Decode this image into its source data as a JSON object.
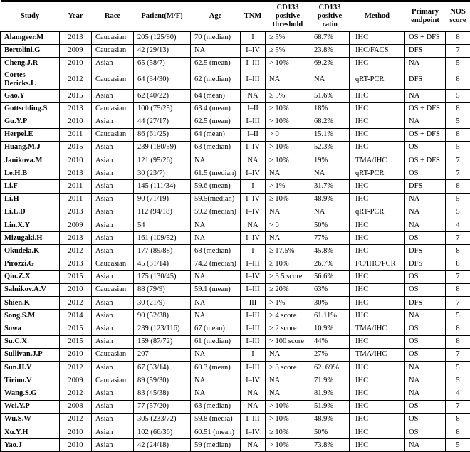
{
  "table": {
    "columns": [
      "Study",
      "Year",
      "Race",
      "Patient(M/F)",
      "Age",
      "TNM",
      "CD133 positive threshold",
      "CD133 positive ratio",
      "Method",
      "Primary endpoint",
      "NOS score"
    ],
    "rows": [
      [
        "Alamgeer.M",
        "2013",
        "Caucasian",
        "205 (125/80)",
        "70 (median)",
        "I",
        "≥ 5%",
        "68.7%",
        "IHC",
        "OS + DFS",
        "8"
      ],
      [
        "Bertolini.G",
        "2009",
        "Caucasian",
        "42 (29/13)",
        "NA",
        "I–IV",
        "≥ 5%",
        "23.8%",
        "IHC/FACS",
        "DFS",
        "7"
      ],
      [
        "Cheng.J.R",
        "2010",
        "Asian",
        "65 (58/7)",
        "62.5 (mean)",
        "I–III",
        "> 10%",
        "69.2%",
        "IHC",
        "NA",
        "5"
      ],
      [
        "Cortes-Dericks.L",
        "2012",
        "Caucasian",
        "64 (34/30)",
        "62 (median)",
        "I–III",
        "NA",
        "NA",
        "qRT-PCR",
        "DFS",
        "8"
      ],
      [
        "Gao.Y",
        "2015",
        "Asian",
        "62 (40/22)",
        "64 (mean)",
        "NA",
        "≥ 5%",
        "51.6%",
        "IHC",
        "NA",
        "5"
      ],
      [
        "Gottschling.S",
        "2013",
        "Caucasian",
        "100 (75/25)",
        "63.4 (mean)",
        "I–II",
        "≥ 10%",
        "18%",
        "IHC",
        "OS + DFS",
        "8"
      ],
      [
        "Gu.Y.P",
        "2010",
        "Asian",
        "44 (27/17)",
        "62.5 (mean)",
        "I–III",
        "> 10%",
        "68.2%",
        "IHC",
        "NA",
        "5"
      ],
      [
        "Herpel.E",
        "2011",
        "Caucasian",
        "86 (61/25)",
        "64 (mean)",
        "I–II",
        "> 0",
        "15.1%",
        "IHC",
        "OS + DFS",
        "8"
      ],
      [
        "Huang.M.J",
        "2015",
        "Asian",
        "239 (180/59)",
        "63 (median)",
        "I–IV",
        "> 10%",
        "52.3%",
        "IHC",
        "OS",
        "5"
      ],
      [
        "Janikova.M",
        "2010",
        "Asian",
        "121 (95/26)",
        "NA",
        "NA",
        "> 10%",
        "19%",
        "TMA/IHC",
        "OS + DFS",
        "7"
      ],
      [
        "Le.H.B",
        "2013",
        "Asian",
        "30 (23/7)",
        "61.5 (median)",
        "I–IV",
        "NA",
        "NA",
        "qRT-PCR",
        "OS",
        "7"
      ],
      [
        "Li.F",
        "2011",
        "Asian",
        "145 (111/34)",
        "59.6 (mean)",
        "I",
        "> 1%",
        "31.7%",
        "IHC",
        "DFS",
        "8"
      ],
      [
        "Li.H",
        "2011",
        "Asian",
        "90 (71/19)",
        "59.5(median)",
        "I–IV",
        "≥ 10%",
        "48.9%",
        "IHC",
        "NA",
        "5"
      ],
      [
        "Li.L.D",
        "2013",
        "Asian",
        "112 (94/18)",
        "59.2 (median)",
        "I–IV",
        "NA",
        "NA",
        "qRT-PCR",
        "NA",
        "5"
      ],
      [
        "Lin.X.Y",
        "2009",
        "Asian",
        "54",
        "NA",
        "NA",
        "> 0",
        "50%",
        "IHC",
        "NA",
        "4"
      ],
      [
        "Mizugaki.H",
        "2013",
        "Asian",
        "161 (109/52)",
        "NA",
        "I–IV",
        "NA",
        "77%",
        "IHC",
        "OS",
        "7"
      ],
      [
        "Okudela.K",
        "2012",
        "Asian",
        "177 (89/88)",
        "68 (median)",
        "I",
        "≥ 17.5%",
        "45.8%",
        "IHC",
        "DFS",
        "8"
      ],
      [
        "Pirozzi.G",
        "2013",
        "Caucasian",
        "45 (31/14)",
        "74.2 (median)",
        "I–III",
        "≥ 10%",
        "26.7%",
        "FC/IHC/PCR",
        "DFS",
        "8"
      ],
      [
        "Qiu.Z.X",
        "2015",
        "Asian",
        "175 (130/45)",
        "NA",
        "I–IV",
        "> 3.5 score",
        "56.6%",
        "IHC",
        "OS",
        "7"
      ],
      [
        "Salnikov.A.V",
        "2010",
        "Caucasian",
        "88 (79/9)",
        "59.1 (mean)",
        "I–III",
        "≥ 20%",
        "63%",
        "IHC",
        "OS",
        "8"
      ],
      [
        "Shien.K",
        "2012",
        "Asian",
        "30 (21/9)",
        "NA",
        "III",
        "> 1%",
        "30%",
        "IHC",
        "DFS",
        "7"
      ],
      [
        "Song.S.M",
        "2014",
        "Asian",
        "90 (52/38)",
        "NA",
        "I–III",
        "> 4 score",
        "61.11%",
        "IHC",
        "NA",
        "5"
      ],
      [
        "Sowa",
        "2015",
        "Asian",
        "239 (123/116)",
        "67 (mean)",
        "I–III",
        "> 2 score",
        "10.9%",
        "TMA/IHC",
        "OS",
        "8"
      ],
      [
        "Su.C.X",
        "2015",
        "Asian",
        "159 (87/72)",
        "61 (median)",
        "I–III",
        "> 100 score",
        "44%",
        "IHC",
        "OS",
        "8"
      ],
      [
        "Sullivan.J.P",
        "2010",
        "Caucasian",
        "207",
        "NA",
        "I",
        "NA",
        "27%",
        "TMA/IHC",
        "OS",
        "7"
      ],
      [
        "Sun.H.Y",
        "2012",
        "Asian",
        "67 (53/14)",
        "60.3 (mean)",
        "I–III",
        "> 3 score",
        "62. 69%",
        "IHC",
        "NA",
        "5"
      ],
      [
        "Tirino.V",
        "2009",
        "Caucasian",
        "89 (59/30)",
        "NA",
        "I–IV",
        "NA",
        "71.9%",
        "IHC",
        "NA",
        "5"
      ],
      [
        "Wang.S.G",
        "2012",
        "Asian",
        "83 (45/38)",
        "NA",
        "NA",
        "NA",
        "81.9%",
        "IHC",
        "NA",
        "4"
      ],
      [
        "Wei.Y.P",
        "2008",
        "Asian",
        "77 (57/20)",
        "63 (median)",
        "NA",
        "> 10%",
        "51.9%",
        "IHC",
        "OS",
        "7"
      ],
      [
        "Wu.S.W",
        "2012",
        "Asian",
        "305 (233/72)",
        "59.8 (media)",
        "I–III",
        "> 10%",
        "48.9%",
        "IHC",
        "OS",
        "8"
      ],
      [
        "Xu.Y.H",
        "2010",
        "Asian",
        "102 (66/36)",
        "60.51 (mean)",
        "I–IV",
        "≥ 10%",
        "50%",
        "IHC",
        "OS",
        "8"
      ],
      [
        "Yao.J",
        "2010",
        "Asian",
        "42 (24/18)",
        "59 (median)",
        "NA",
        "> 10%",
        "73.8%",
        "IHC",
        "NA",
        "5"
      ]
    ]
  }
}
